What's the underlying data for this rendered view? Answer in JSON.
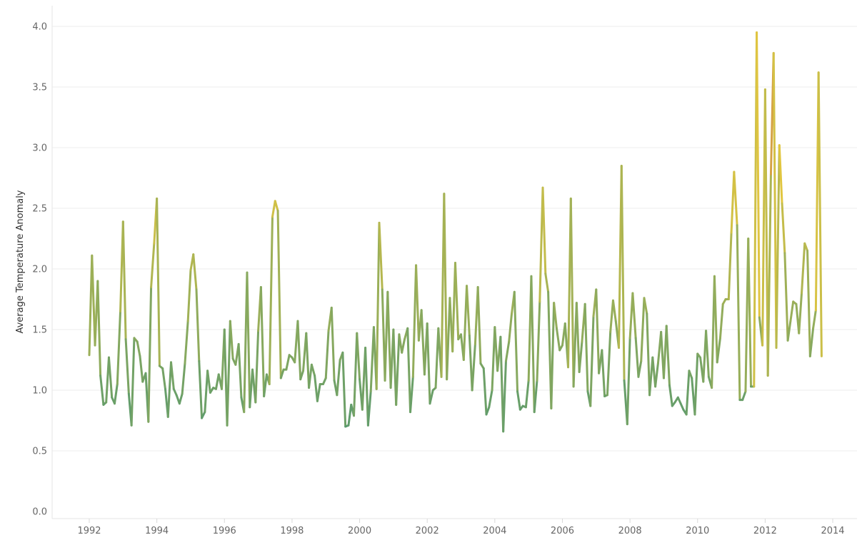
{
  "chart_data": {
    "type": "line",
    "title": "",
    "xlabel": "",
    "ylabel": "Average Temperature Anomaly",
    "xlim": [
      1991.5,
      2014.6
    ],
    "ylim": [
      0,
      4.0
    ],
    "x_ticks": [
      1992,
      1994,
      1996,
      1998,
      2000,
      2002,
      2004,
      2006,
      2008,
      2010,
      2012,
      2014
    ],
    "x_tick_labels": [
      "1992",
      "1994",
      "1996",
      "1998",
      "2000",
      "2002",
      "2004",
      "2006",
      "2008",
      "2010",
      "2012",
      "2014"
    ],
    "y_ticks": [
      0,
      0.5,
      1.0,
      1.5,
      2.0,
      2.5,
      3.0,
      3.5,
      4.0
    ],
    "y_tick_labels": [
      "0.0",
      "0.5",
      "1.0",
      "1.5",
      "2.0",
      "2.5",
      "3.0",
      "3.5",
      "4.0"
    ],
    "grid": "horizontal",
    "color_scale": {
      "low": "#5a9a6e",
      "mid": "#e2c640",
      "high": "#c4704a",
      "low_value": 0.7,
      "mid_value": 2.8,
      "high_value": 3.95
    },
    "series": [
      {
        "x": [
          1992.0,
          1992.08,
          1992.17,
          1992.25,
          1992.33,
          1992.42,
          1992.5,
          1992.58,
          1992.67,
          1992.75,
          1992.83,
          1992.92,
          1993.0,
          1993.08,
          1993.17,
          1993.25,
          1993.33,
          1993.42,
          1993.5,
          1993.58,
          1993.67,
          1993.75,
          1993.83,
          1993.92,
          1994.0,
          1994.08,
          1994.17,
          1994.25,
          1994.33,
          1994.42,
          1994.5,
          1994.58,
          1994.67,
          1994.75,
          1994.83,
          1994.92,
          1995.0,
          1995.08,
          1995.17,
          1995.25,
          1995.33,
          1995.42,
          1995.5,
          1995.58,
          1995.67,
          1995.75,
          1995.83,
          1995.92,
          1996.0,
          1996.08,
          1996.17,
          1996.25,
          1996.33,
          1996.42,
          1996.5,
          1996.58,
          1996.67,
          1996.75,
          1996.83,
          1996.92,
          1997.0,
          1997.08,
          1997.17,
          1997.25,
          1997.33,
          1997.42,
          1997.5,
          1997.58,
          1997.67,
          1997.75,
          1997.83,
          1997.92,
          1998.0,
          1998.08,
          1998.17,
          1998.25,
          1998.33,
          1998.42,
          1998.5,
          1998.58,
          1998.67,
          1998.75,
          1998.83,
          1998.92,
          1999.0,
          1999.08,
          1999.17,
          1999.25,
          1999.33,
          1999.42,
          1999.5,
          1999.58,
          1999.67,
          1999.75,
          1999.83,
          1999.92,
          2000.0,
          2000.08,
          2000.17,
          2000.25,
          2000.33,
          2000.42,
          2000.5,
          2000.58,
          2000.67,
          2000.75,
          2000.83,
          2000.92,
          2001.0,
          2001.08,
          2001.17,
          2001.25,
          2001.33,
          2001.42,
          2001.5,
          2001.58,
          2001.67,
          2001.75,
          2001.83,
          2001.92,
          2002.0,
          2002.08,
          2002.17,
          2002.25,
          2002.33,
          2002.42,
          2002.5,
          2002.58,
          2002.67,
          2002.75,
          2002.83,
          2002.92,
          2003.0,
          2003.08,
          2003.17,
          2003.25,
          2003.33,
          2003.42,
          2003.5,
          2003.58,
          2003.67,
          2003.75,
          2003.83,
          2003.92,
          2004.0,
          2004.08,
          2004.17,
          2004.25,
          2004.33,
          2004.42,
          2004.5,
          2004.58,
          2004.67,
          2004.75,
          2004.83,
          2004.92,
          2005.0,
          2005.08,
          2005.17,
          2005.25,
          2005.33,
          2005.42,
          2005.5,
          2005.58,
          2005.67,
          2005.75,
          2005.83,
          2005.92,
          2006.0,
          2006.08,
          2006.17,
          2006.25,
          2006.33,
          2006.42,
          2006.5,
          2006.58,
          2006.67,
          2006.75,
          2006.83,
          2006.92,
          2007.0,
          2007.08,
          2007.17,
          2007.25,
          2007.33,
          2007.42,
          2007.5,
          2007.58,
          2007.67,
          2007.75,
          2007.83,
          2007.92,
          2008.0,
          2008.08,
          2008.17,
          2008.25,
          2008.33,
          2008.42,
          2008.5,
          2008.58,
          2008.67,
          2008.75,
          2008.83,
          2008.92,
          2009.0,
          2009.08,
          2009.17,
          2009.25,
          2009.33,
          2009.42,
          2009.5,
          2009.58,
          2009.67,
          2009.75,
          2009.83,
          2009.92,
          2010.0,
          2010.08,
          2010.17,
          2010.25,
          2010.33,
          2010.42,
          2010.5,
          2010.58,
          2010.67,
          2010.75,
          2010.83,
          2010.92,
          2011.0,
          2011.08,
          2011.17,
          2011.25,
          2011.33,
          2011.42,
          2011.5,
          2011.58,
          2011.67,
          2011.75,
          2011.83,
          2011.92,
          2012.0,
          2012.08,
          2012.17,
          2012.25,
          2012.33,
          2012.42,
          2012.5,
          2012.58,
          2012.67,
          2012.75,
          2012.83,
          2012.92,
          2013.0,
          2013.08,
          2013.17,
          2013.25,
          2013.33,
          2013.42,
          2013.5,
          2013.58,
          2013.67
        ],
        "values": [
          1.29,
          2.11,
          1.37,
          1.9,
          1.12,
          0.88,
          0.9,
          1.27,
          0.94,
          0.89,
          1.05,
          1.65,
          2.39,
          1.42,
          0.97,
          0.71,
          1.43,
          1.4,
          1.28,
          1.07,
          1.14,
          0.74,
          1.85,
          2.21,
          2.58,
          1.2,
          1.18,
          1.01,
          0.78,
          1.23,
          1.01,
          0.96,
          0.89,
          0.97,
          1.22,
          1.57,
          1.99,
          2.12,
          1.83,
          1.24,
          0.77,
          0.82,
          1.16,
          0.98,
          1.02,
          1.01,
          1.13,
          1.01,
          1.5,
          0.71,
          1.57,
          1.26,
          1.21,
          1.38,
          0.94,
          0.82,
          1.97,
          0.86,
          1.17,
          0.9,
          1.49,
          1.85,
          0.95,
          1.13,
          1.05,
          2.43,
          2.56,
          2.48,
          1.1,
          1.17,
          1.17,
          1.29,
          1.27,
          1.23,
          1.57,
          1.09,
          1.16,
          1.47,
          1.02,
          1.21,
          1.12,
          0.91,
          1.05,
          1.05,
          1.1,
          1.49,
          1.68,
          1.08,
          0.96,
          1.25,
          1.31,
          0.7,
          0.71,
          0.88,
          0.79,
          1.47,
          1.09,
          0.84,
          1.35,
          0.71,
          0.99,
          1.52,
          1.01,
          2.38,
          1.83,
          1.08,
          1.81,
          1.02,
          1.5,
          0.88,
          1.46,
          1.31,
          1.42,
          1.51,
          0.82,
          1.11,
          2.03,
          1.41,
          1.66,
          1.13,
          1.55,
          0.89,
          1.0,
          1.02,
          1.51,
          1.11,
          2.62,
          1.09,
          1.76,
          1.32,
          2.05,
          1.42,
          1.46,
          1.25,
          1.86,
          1.45,
          1.0,
          1.38,
          1.85,
          1.22,
          1.18,
          0.8,
          0.86,
          1.0,
          1.52,
          1.16,
          1.44,
          0.66,
          1.24,
          1.4,
          1.63,
          1.81,
          0.99,
          0.84,
          0.87,
          0.86,
          1.08,
          1.94,
          0.82,
          1.08,
          1.73,
          2.67,
          1.96,
          1.81,
          0.85,
          1.72,
          1.51,
          1.33,
          1.37,
          1.55,
          1.19,
          2.58,
          1.03,
          1.72,
          1.15,
          1.4,
          1.71,
          0.99,
          0.87,
          1.61,
          1.83,
          1.14,
          1.33,
          0.95,
          0.96,
          1.48,
          1.74,
          1.57,
          1.35,
          2.85,
          1.08,
          0.72,
          1.43,
          1.8,
          1.43,
          1.11,
          1.24,
          1.76,
          1.63,
          0.96,
          1.27,
          1.03,
          1.22,
          1.48,
          1.1,
          1.53,
          1.04,
          0.87,
          0.9,
          0.94,
          0.89,
          0.84,
          0.8,
          1.16,
          1.1,
          0.8,
          1.3,
          1.27,
          1.07,
          1.49,
          1.11,
          1.02,
          1.94,
          1.23,
          1.43,
          1.71,
          1.75,
          1.75,
          2.3,
          2.8,
          2.36,
          0.92,
          0.92,
          0.99,
          2.25,
          1.03,
          1.03,
          3.95,
          1.6,
          1.37,
          3.48,
          1.12,
          2.78,
          3.78,
          1.35,
          3.02,
          2.54,
          2.13,
          1.41,
          1.57,
          1.73,
          1.71,
          1.47,
          1.8,
          2.21,
          2.15,
          1.28,
          1.51,
          1.66,
          3.62,
          1.28
        ]
      }
    ]
  }
}
